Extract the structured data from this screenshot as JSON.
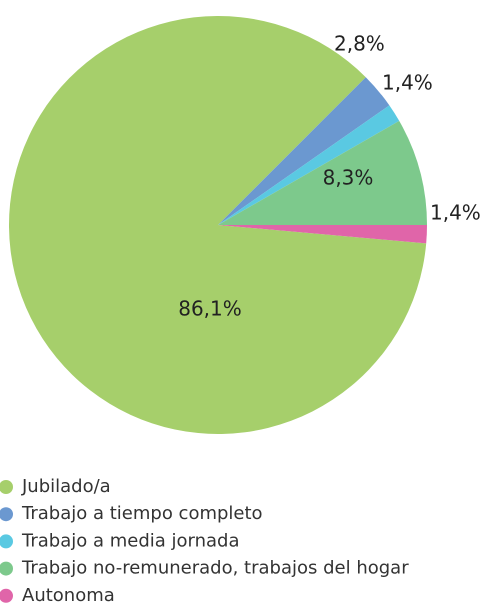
{
  "chart_data": {
    "type": "pie",
    "categories": [
      "Jubilado/a",
      "Trabajo a tiempo completo",
      "Trabajo a media jornada",
      "Trabajo no-remunerado, trabajos del hogar",
      "Autonoma"
    ],
    "values": [
      86.1,
      2.8,
      1.4,
      8.3,
      1.4
    ],
    "value_labels": [
      "86,1%",
      "2,8%",
      "1,4%",
      "8,3%",
      "1,4%"
    ],
    "colors": [
      "#a6cf6b",
      "#6b98d0",
      "#5ac9e2",
      "#7dc98c",
      "#e065a9"
    ]
  }
}
